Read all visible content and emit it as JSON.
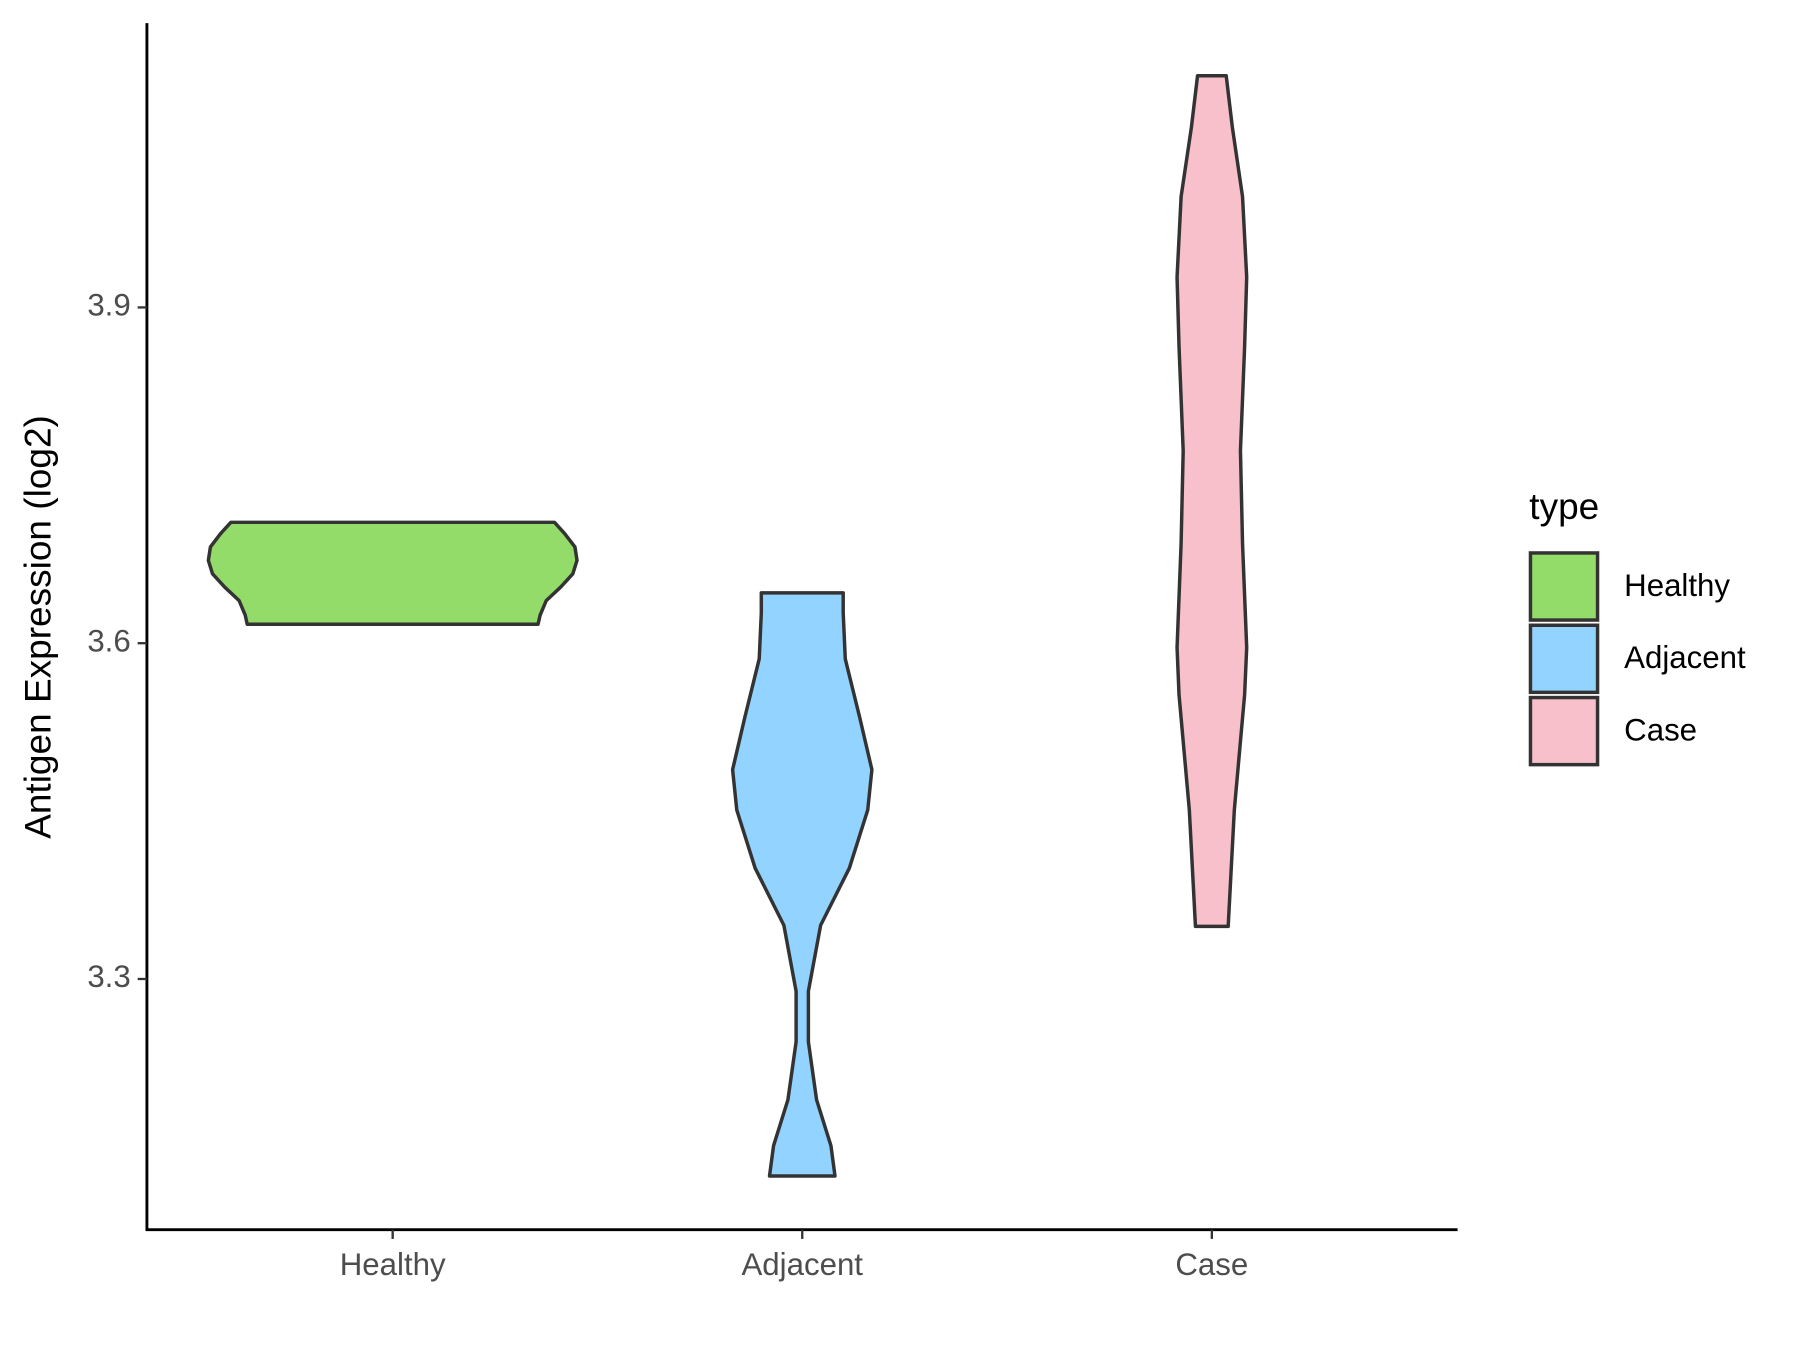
{
  "chart_data": {
    "type": "violin",
    "y_label": "Antigen Expression (log2)",
    "categories": [
      "Healthy",
      "Adjacent",
      "Case"
    ],
    "legend_title": "type",
    "legend": "right",
    "ylim": [
      3.076,
      4.154
    ],
    "yticks": [
      3.3,
      3.6,
      3.9
    ],
    "series": [
      {
        "name": "Healthy",
        "color": "#93dc6a",
        "y": [
          3.617,
          3.625,
          3.638,
          3.65,
          3.662,
          3.674,
          3.686,
          3.698,
          3.708
        ],
        "widths": [
          0.71,
          0.72,
          0.75,
          0.82,
          0.88,
          0.9,
          0.89,
          0.84,
          0.79
        ]
      },
      {
        "name": "Adjacent",
        "color": "#93d3ff",
        "y": [
          3.124,
          3.151,
          3.192,
          3.244,
          3.289,
          3.348,
          3.399,
          3.451,
          3.487,
          3.534,
          3.586,
          3.627,
          3.645
        ],
        "widths": [
          0.16,
          0.14,
          0.07,
          0.03,
          0.03,
          0.09,
          0.23,
          0.32,
          0.34,
          0.28,
          0.21,
          0.2,
          0.2
        ]
      },
      {
        "name": "Case",
        "color": "#f7c0cb",
        "y": [
          3.347,
          3.451,
          3.554,
          3.596,
          3.689,
          3.772,
          3.865,
          3.927,
          3.999,
          4.061,
          4.107
        ],
        "widths": [
          0.08,
          0.11,
          0.16,
          0.17,
          0.15,
          0.14,
          0.16,
          0.17,
          0.15,
          0.1,
          0.07
        ]
      }
    ]
  }
}
